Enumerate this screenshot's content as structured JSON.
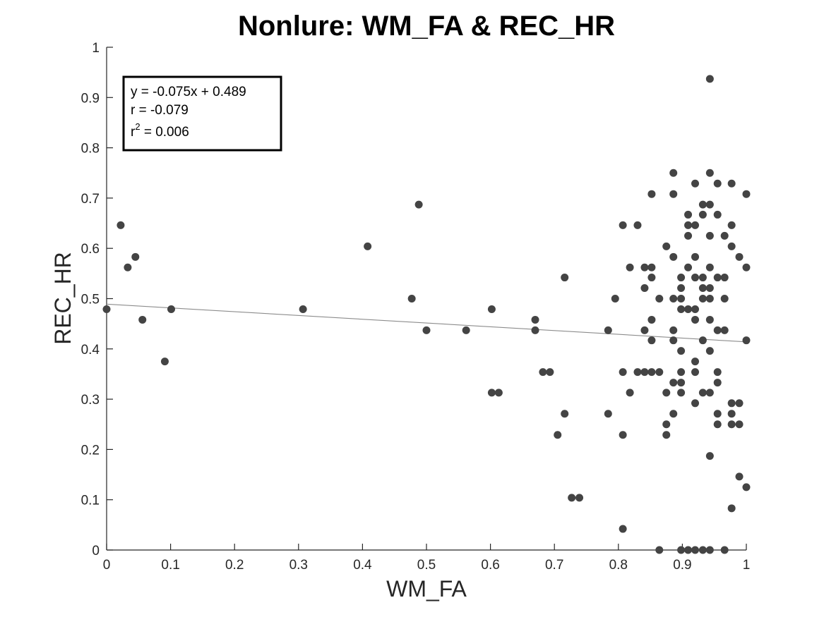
{
  "chart_data": {
    "type": "scatter",
    "title": "Nonlure: WM_FA & REC_HR",
    "xlabel": "WM_FA",
    "ylabel": "REC_HR",
    "xlim": [
      0,
      1
    ],
    "ylim": [
      0,
      1
    ],
    "x_ticks": [
      "0",
      "0.1",
      "0.2",
      "0.3",
      "0.4",
      "0.5",
      "0.6",
      "0.7",
      "0.8",
      "0.9",
      "1"
    ],
    "y_ticks": [
      "0",
      "0.1",
      "0.2",
      "0.3",
      "0.4",
      "0.5",
      "0.6",
      "0.7",
      "0.8",
      "0.9",
      "1"
    ],
    "grid": false,
    "marker_color": "#444444",
    "fit_line": {
      "slope": -0.075,
      "intercept": 0.489,
      "color": "#8c8c8c"
    },
    "stats": {
      "equation": "y = -0.075x + 0.489",
      "r": "r = -0.079",
      "r2_prefix": "r",
      "r2_superscript": "2",
      "r2_value": " = 0.006"
    },
    "points": [
      [
        0.0,
        0.479
      ],
      [
        0.022,
        0.646
      ],
      [
        0.033,
        0.562
      ],
      [
        0.045,
        0.583
      ],
      [
        0.056,
        0.458
      ],
      [
        0.091,
        0.375
      ],
      [
        0.101,
        0.479
      ],
      [
        0.307,
        0.479
      ],
      [
        0.408,
        0.604
      ],
      [
        0.477,
        0.5
      ],
      [
        0.488,
        0.687
      ],
      [
        0.5,
        0.437
      ],
      [
        0.562,
        0.437
      ],
      [
        0.602,
        0.479
      ],
      [
        0.602,
        0.313
      ],
      [
        0.613,
        0.313
      ],
      [
        0.67,
        0.458
      ],
      [
        0.67,
        0.437
      ],
      [
        0.682,
        0.354
      ],
      [
        0.693,
        0.354
      ],
      [
        0.705,
        0.229
      ],
      [
        0.716,
        0.542
      ],
      [
        0.716,
        0.271
      ],
      [
        0.727,
        0.104
      ],
      [
        0.739,
        0.104
      ],
      [
        0.784,
        0.437
      ],
      [
        0.784,
        0.271
      ],
      [
        0.795,
        0.5
      ],
      [
        0.807,
        0.646
      ],
      [
        0.807,
        0.354
      ],
      [
        0.807,
        0.229
      ],
      [
        0.807,
        0.042
      ],
      [
        0.818,
        0.562
      ],
      [
        0.818,
        0.313
      ],
      [
        0.83,
        0.646
      ],
      [
        0.83,
        0.354
      ],
      [
        0.841,
        0.562
      ],
      [
        0.841,
        0.521
      ],
      [
        0.841,
        0.437
      ],
      [
        0.841,
        0.354
      ],
      [
        0.852,
        0.708
      ],
      [
        0.852,
        0.562
      ],
      [
        0.852,
        0.542
      ],
      [
        0.852,
        0.458
      ],
      [
        0.852,
        0.417
      ],
      [
        0.852,
        0.354
      ],
      [
        0.864,
        0.5
      ],
      [
        0.864,
        0.354
      ],
      [
        0.864,
        0.0
      ],
      [
        0.875,
        0.604
      ],
      [
        0.875,
        0.313
      ],
      [
        0.875,
        0.25
      ],
      [
        0.875,
        0.229
      ],
      [
        0.886,
        0.75
      ],
      [
        0.886,
        0.708
      ],
      [
        0.886,
        0.583
      ],
      [
        0.886,
        0.5
      ],
      [
        0.886,
        0.437
      ],
      [
        0.886,
        0.417
      ],
      [
        0.886,
        0.333
      ],
      [
        0.886,
        0.271
      ],
      [
        0.898,
        0.542
      ],
      [
        0.898,
        0.521
      ],
      [
        0.898,
        0.5
      ],
      [
        0.898,
        0.479
      ],
      [
        0.898,
        0.396
      ],
      [
        0.898,
        0.354
      ],
      [
        0.898,
        0.333
      ],
      [
        0.898,
        0.313
      ],
      [
        0.898,
        0.0
      ],
      [
        0.909,
        0.667
      ],
      [
        0.909,
        0.646
      ],
      [
        0.909,
        0.625
      ],
      [
        0.909,
        0.562
      ],
      [
        0.909,
        0.479
      ],
      [
        0.909,
        0.0
      ],
      [
        0.92,
        0.729
      ],
      [
        0.92,
        0.646
      ],
      [
        0.92,
        0.583
      ],
      [
        0.92,
        0.542
      ],
      [
        0.92,
        0.479
      ],
      [
        0.92,
        0.458
      ],
      [
        0.92,
        0.375
      ],
      [
        0.92,
        0.354
      ],
      [
        0.92,
        0.292
      ],
      [
        0.92,
        0.0
      ],
      [
        0.932,
        0.687
      ],
      [
        0.932,
        0.667
      ],
      [
        0.932,
        0.542
      ],
      [
        0.932,
        0.521
      ],
      [
        0.932,
        0.5
      ],
      [
        0.932,
        0.417
      ],
      [
        0.932,
        0.313
      ],
      [
        0.932,
        0.0
      ],
      [
        0.943,
        0.937
      ],
      [
        0.943,
        0.75
      ],
      [
        0.943,
        0.687
      ],
      [
        0.943,
        0.625
      ],
      [
        0.943,
        0.562
      ],
      [
        0.943,
        0.521
      ],
      [
        0.943,
        0.5
      ],
      [
        0.943,
        0.458
      ],
      [
        0.943,
        0.396
      ],
      [
        0.943,
        0.313
      ],
      [
        0.943,
        0.187
      ],
      [
        0.943,
        0.0
      ],
      [
        0.955,
        0.729
      ],
      [
        0.955,
        0.667
      ],
      [
        0.955,
        0.542
      ],
      [
        0.955,
        0.437
      ],
      [
        0.955,
        0.354
      ],
      [
        0.955,
        0.333
      ],
      [
        0.955,
        0.271
      ],
      [
        0.955,
        0.25
      ],
      [
        0.966,
        0.625
      ],
      [
        0.966,
        0.542
      ],
      [
        0.966,
        0.5
      ],
      [
        0.966,
        0.437
      ],
      [
        0.966,
        0.0
      ],
      [
        0.977,
        0.729
      ],
      [
        0.977,
        0.646
      ],
      [
        0.977,
        0.604
      ],
      [
        0.977,
        0.292
      ],
      [
        0.977,
        0.271
      ],
      [
        0.977,
        0.25
      ],
      [
        0.977,
        0.083
      ],
      [
        0.989,
        0.583
      ],
      [
        0.989,
        0.292
      ],
      [
        0.989,
        0.25
      ],
      [
        0.989,
        0.146
      ],
      [
        1.0,
        0.708
      ],
      [
        1.0,
        0.562
      ],
      [
        1.0,
        0.417
      ],
      [
        1.0,
        0.125
      ]
    ]
  }
}
